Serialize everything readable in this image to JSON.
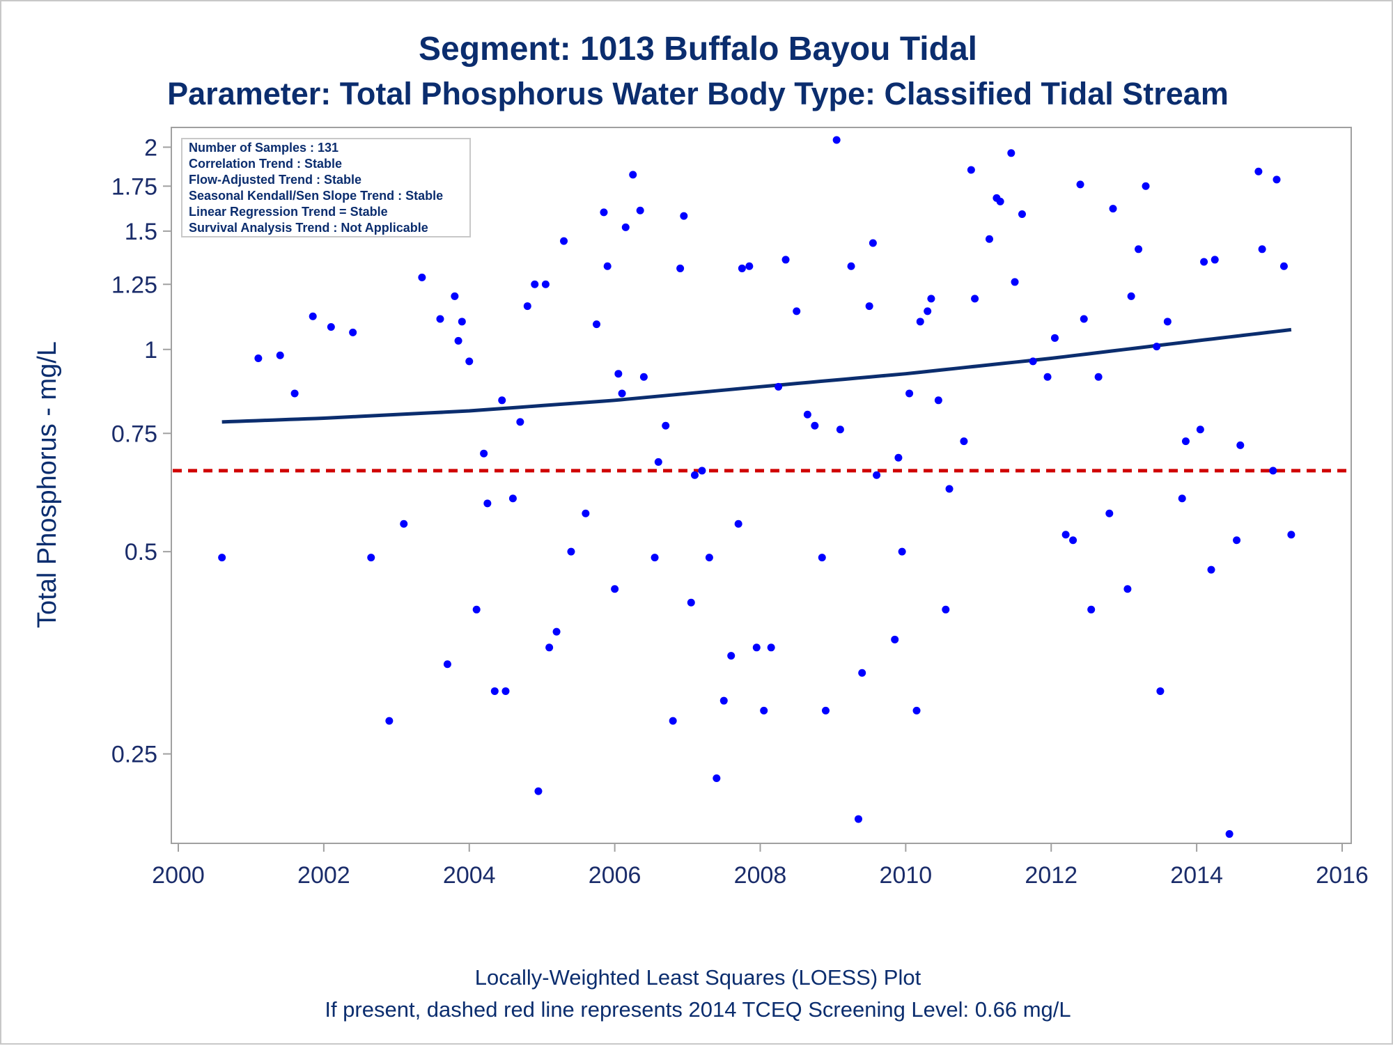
{
  "title": "Segment: 1013  Buffalo Bayou Tidal",
  "subtitle": "Parameter: Total Phosphorus   Water Body Type: Classified Tidal Stream",
  "inset_lines": [
    "Number of Samples : 131",
    "Correlation Trend : Stable",
    "Flow-Adjusted Trend : Stable",
    "Seasonal Kendall/Sen Slope Trend : Stable",
    "Linear Regression Trend = Stable",
    "Survival Analysis Trend : Not Applicable"
  ],
  "footnotes": [
    "Locally-Weighted Least Squares (LOESS) Plot",
    "If present, dashed red line represents 2014 TCEQ Screening Level: 0.66 mg/L"
  ],
  "colors": {
    "text": "#0b2d6e",
    "points": "#0000ff",
    "loess": "#0b2d6e",
    "screening": "#d00000",
    "axis": "#a0a0a0"
  },
  "chart_data": {
    "type": "scatter",
    "xlabel": "",
    "ylabel": "Total Phosphorus - mg/L",
    "y_scale": "log",
    "xlim": [
      2000,
      2016
    ],
    "ylim": [
      0.184,
      2.14
    ],
    "x_ticks": [
      2000,
      2002,
      2004,
      2006,
      2008,
      2010,
      2012,
      2014,
      2016
    ],
    "y_ticks": [
      0.25,
      0.5,
      0.75,
      1,
      1.25,
      1.5,
      1.75,
      2
    ],
    "y_tick_labels": [
      "0.25",
      "0.5",
      "0.75",
      "1",
      "1.25",
      "1.5",
      "1.75",
      "2"
    ],
    "screening_level": 0.66,
    "loess": [
      {
        "x": 2000.6,
        "y": 0.78
      },
      {
        "x": 2002.0,
        "y": 0.79
      },
      {
        "x": 2004.0,
        "y": 0.81
      },
      {
        "x": 2006.0,
        "y": 0.84
      },
      {
        "x": 2008.0,
        "y": 0.88
      },
      {
        "x": 2010.0,
        "y": 0.92
      },
      {
        "x": 2012.0,
        "y": 0.97
      },
      {
        "x": 2014.0,
        "y": 1.03
      },
      {
        "x": 2015.3,
        "y": 1.07
      }
    ],
    "series": [
      {
        "points": [
          {
            "x": 2000.6,
            "y": 0.49
          },
          {
            "x": 2001.1,
            "y": 0.97
          },
          {
            "x": 2001.4,
            "y": 0.98
          },
          {
            "x": 2001.6,
            "y": 0.86
          },
          {
            "x": 2001.85,
            "y": 1.12
          },
          {
            "x": 2002.1,
            "y": 1.08
          },
          {
            "x": 2002.4,
            "y": 1.06
          },
          {
            "x": 2002.65,
            "y": 0.49
          },
          {
            "x": 2002.9,
            "y": 0.28
          },
          {
            "x": 2003.1,
            "y": 0.55
          },
          {
            "x": 2003.35,
            "y": 1.28
          },
          {
            "x": 2003.6,
            "y": 1.11
          },
          {
            "x": 2003.7,
            "y": 0.34
          },
          {
            "x": 2003.8,
            "y": 1.2
          },
          {
            "x": 2003.85,
            "y": 1.03
          },
          {
            "x": 2003.9,
            "y": 1.1
          },
          {
            "x": 2004.0,
            "y": 0.96
          },
          {
            "x": 2004.1,
            "y": 0.41
          },
          {
            "x": 2004.2,
            "y": 0.7
          },
          {
            "x": 2004.25,
            "y": 0.59
          },
          {
            "x": 2004.35,
            "y": 0.31
          },
          {
            "x": 2004.45,
            "y": 0.84
          },
          {
            "x": 2004.5,
            "y": 0.31
          },
          {
            "x": 2004.6,
            "y": 0.6
          },
          {
            "x": 2004.7,
            "y": 0.78
          },
          {
            "x": 2004.8,
            "y": 1.16
          },
          {
            "x": 2004.9,
            "y": 1.25
          },
          {
            "x": 2004.95,
            "y": 0.22
          },
          {
            "x": 2005.05,
            "y": 1.25
          },
          {
            "x": 2005.1,
            "y": 0.36
          },
          {
            "x": 2005.2,
            "y": 0.38
          },
          {
            "x": 2005.3,
            "y": 1.45
          },
          {
            "x": 2005.4,
            "y": 0.5
          },
          {
            "x": 2005.6,
            "y": 0.57
          },
          {
            "x": 2005.75,
            "y": 1.09
          },
          {
            "x": 2005.85,
            "y": 1.6
          },
          {
            "x": 2005.9,
            "y": 1.33
          },
          {
            "x": 2006.0,
            "y": 0.44
          },
          {
            "x": 2006.05,
            "y": 0.92
          },
          {
            "x": 2006.1,
            "y": 0.86
          },
          {
            "x": 2006.15,
            "y": 1.52
          },
          {
            "x": 2006.25,
            "y": 1.82
          },
          {
            "x": 2006.35,
            "y": 1.61
          },
          {
            "x": 2006.4,
            "y": 0.91
          },
          {
            "x": 2006.55,
            "y": 0.49
          },
          {
            "x": 2006.6,
            "y": 0.68
          },
          {
            "x": 2006.7,
            "y": 0.77
          },
          {
            "x": 2006.8,
            "y": 0.28
          },
          {
            "x": 2006.9,
            "y": 1.32
          },
          {
            "x": 2006.95,
            "y": 1.58
          },
          {
            "x": 2007.05,
            "y": 0.42
          },
          {
            "x": 2007.1,
            "y": 0.65
          },
          {
            "x": 2007.2,
            "y": 0.66
          },
          {
            "x": 2007.3,
            "y": 0.49
          },
          {
            "x": 2007.4,
            "y": 0.23
          },
          {
            "x": 2007.5,
            "y": 0.3
          },
          {
            "x": 2007.6,
            "y": 0.35
          },
          {
            "x": 2007.7,
            "y": 0.55
          },
          {
            "x": 2007.75,
            "y": 1.32
          },
          {
            "x": 2007.85,
            "y": 1.33
          },
          {
            "x": 2007.95,
            "y": 0.36
          },
          {
            "x": 2008.05,
            "y": 0.29
          },
          {
            "x": 2008.15,
            "y": 0.36
          },
          {
            "x": 2008.25,
            "y": 0.88
          },
          {
            "x": 2008.35,
            "y": 1.36
          },
          {
            "x": 2008.5,
            "y": 1.14
          },
          {
            "x": 2008.65,
            "y": 0.8
          },
          {
            "x": 2008.75,
            "y": 0.77
          },
          {
            "x": 2008.85,
            "y": 0.49
          },
          {
            "x": 2008.9,
            "y": 0.29
          },
          {
            "x": 2009.05,
            "y": 2.05
          },
          {
            "x": 2009.1,
            "y": 0.76
          },
          {
            "x": 2009.25,
            "y": 1.33
          },
          {
            "x": 2009.35,
            "y": 0.2
          },
          {
            "x": 2009.4,
            "y": 0.33
          },
          {
            "x": 2009.5,
            "y": 1.16
          },
          {
            "x": 2009.55,
            "y": 1.44
          },
          {
            "x": 2009.6,
            "y": 0.65
          },
          {
            "x": 2009.85,
            "y": 0.37
          },
          {
            "x": 2009.9,
            "y": 0.69
          },
          {
            "x": 2009.95,
            "y": 0.5
          },
          {
            "x": 2010.05,
            "y": 0.86
          },
          {
            "x": 2010.15,
            "y": 0.29
          },
          {
            "x": 2010.2,
            "y": 1.1
          },
          {
            "x": 2010.3,
            "y": 1.14
          },
          {
            "x": 2010.35,
            "y": 1.19
          },
          {
            "x": 2010.45,
            "y": 0.84
          },
          {
            "x": 2010.55,
            "y": 0.41
          },
          {
            "x": 2010.6,
            "y": 0.62
          },
          {
            "x": 2010.8,
            "y": 0.73
          },
          {
            "x": 2010.9,
            "y": 1.85
          },
          {
            "x": 2010.95,
            "y": 1.19
          },
          {
            "x": 2011.15,
            "y": 1.46
          },
          {
            "x": 2011.25,
            "y": 1.68
          },
          {
            "x": 2011.3,
            "y": 1.66
          },
          {
            "x": 2011.45,
            "y": 1.96
          },
          {
            "x": 2011.5,
            "y": 1.26
          },
          {
            "x": 2011.6,
            "y": 1.59
          },
          {
            "x": 2011.75,
            "y": 0.96
          },
          {
            "x": 2011.95,
            "y": 0.91
          },
          {
            "x": 2012.05,
            "y": 1.04
          },
          {
            "x": 2012.2,
            "y": 0.53
          },
          {
            "x": 2012.3,
            "y": 0.52
          },
          {
            "x": 2012.4,
            "y": 1.76
          },
          {
            "x": 2012.45,
            "y": 1.11
          },
          {
            "x": 2012.55,
            "y": 0.41
          },
          {
            "x": 2012.65,
            "y": 0.91
          },
          {
            "x": 2012.8,
            "y": 0.57
          },
          {
            "x": 2012.85,
            "y": 1.62
          },
          {
            "x": 2013.05,
            "y": 0.44
          },
          {
            "x": 2013.1,
            "y": 1.2
          },
          {
            "x": 2013.2,
            "y": 1.41
          },
          {
            "x": 2013.3,
            "y": 1.75
          },
          {
            "x": 2013.45,
            "y": 1.01
          },
          {
            "x": 2013.5,
            "y": 0.31
          },
          {
            "x": 2013.6,
            "y": 1.1
          },
          {
            "x": 2013.8,
            "y": 0.6
          },
          {
            "x": 2013.85,
            "y": 0.73
          },
          {
            "x": 2014.05,
            "y": 0.76
          },
          {
            "x": 2014.1,
            "y": 1.35
          },
          {
            "x": 2014.2,
            "y": 0.47
          },
          {
            "x": 2014.25,
            "y": 1.36
          },
          {
            "x": 2014.45,
            "y": 0.19
          },
          {
            "x": 2014.55,
            "y": 0.52
          },
          {
            "x": 2014.6,
            "y": 0.72
          },
          {
            "x": 2014.85,
            "y": 1.84
          },
          {
            "x": 2014.9,
            "y": 1.41
          },
          {
            "x": 2015.05,
            "y": 0.66
          },
          {
            "x": 2015.1,
            "y": 1.79
          },
          {
            "x": 2015.2,
            "y": 1.33
          },
          {
            "x": 2015.3,
            "y": 0.53
          }
        ]
      }
    ]
  }
}
